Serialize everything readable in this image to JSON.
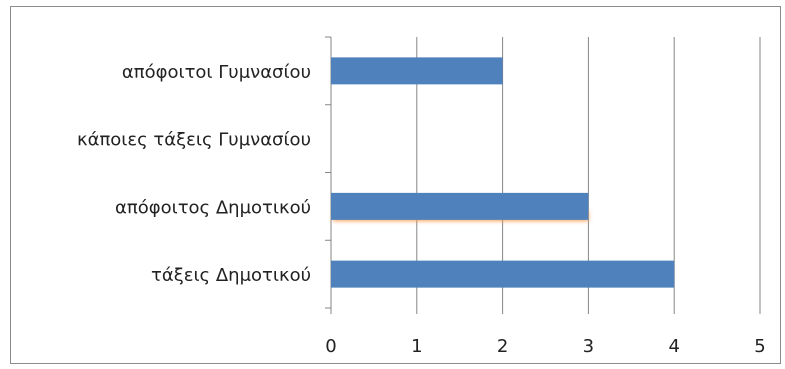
{
  "chart_data": {
    "type": "bar",
    "orientation": "horizontal",
    "categories": [
      "τάξεις Δημοτικού",
      "απόφοιτος Δημοτικού",
      "κάποιες τάξεις  Γυμνασίου",
      "απόφοιτοι Γυμνασίου"
    ],
    "values": [
      4,
      3,
      0,
      2
    ],
    "xlim": [
      0,
      5
    ],
    "xticks": [
      "0",
      "1",
      "2",
      "3",
      "4",
      "5"
    ],
    "grid": true,
    "legend": "none",
    "bar_color": "#4f81bd",
    "highlight_color": "#f79646",
    "highlighted_category": "απόφοιτος Δημοτικού"
  }
}
